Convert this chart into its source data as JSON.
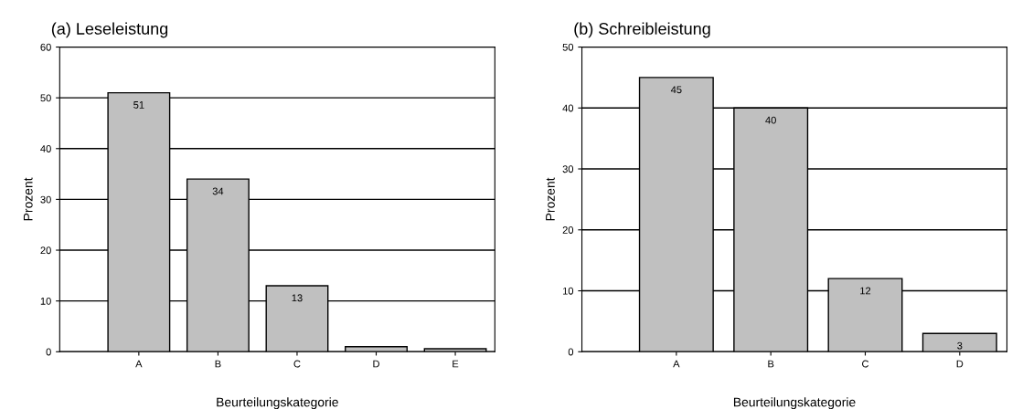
{
  "chart_data": [
    {
      "type": "bar",
      "title": "(a) Leseleistung",
      "xlabel": "Beurteilungskategorie",
      "ylabel": "Prozent",
      "categories": [
        "A",
        "B",
        "C",
        "D",
        "E"
      ],
      "values": [
        51,
        34,
        13,
        1,
        0.6
      ],
      "value_labels": [
        "51",
        "34",
        "13",
        null,
        null
      ],
      "color": "#c0c0c0",
      "ylim": [
        0,
        60
      ],
      "yticks": [
        0,
        10,
        20,
        30,
        40,
        50,
        60
      ],
      "grid": "y"
    },
    {
      "type": "bar",
      "title": "(b) Schreibleistung",
      "xlabel": "Beurteilungskategorie",
      "ylabel": "Prozent",
      "categories": [
        "A",
        "B",
        "C",
        "D"
      ],
      "values": [
        45,
        40,
        12,
        3
      ],
      "value_labels": [
        "45",
        "40",
        "12",
        "3"
      ],
      "color": "#c0c0c0",
      "ylim": [
        0,
        50
      ],
      "yticks": [
        0,
        10,
        20,
        30,
        40,
        50
      ],
      "grid": "y"
    }
  ]
}
